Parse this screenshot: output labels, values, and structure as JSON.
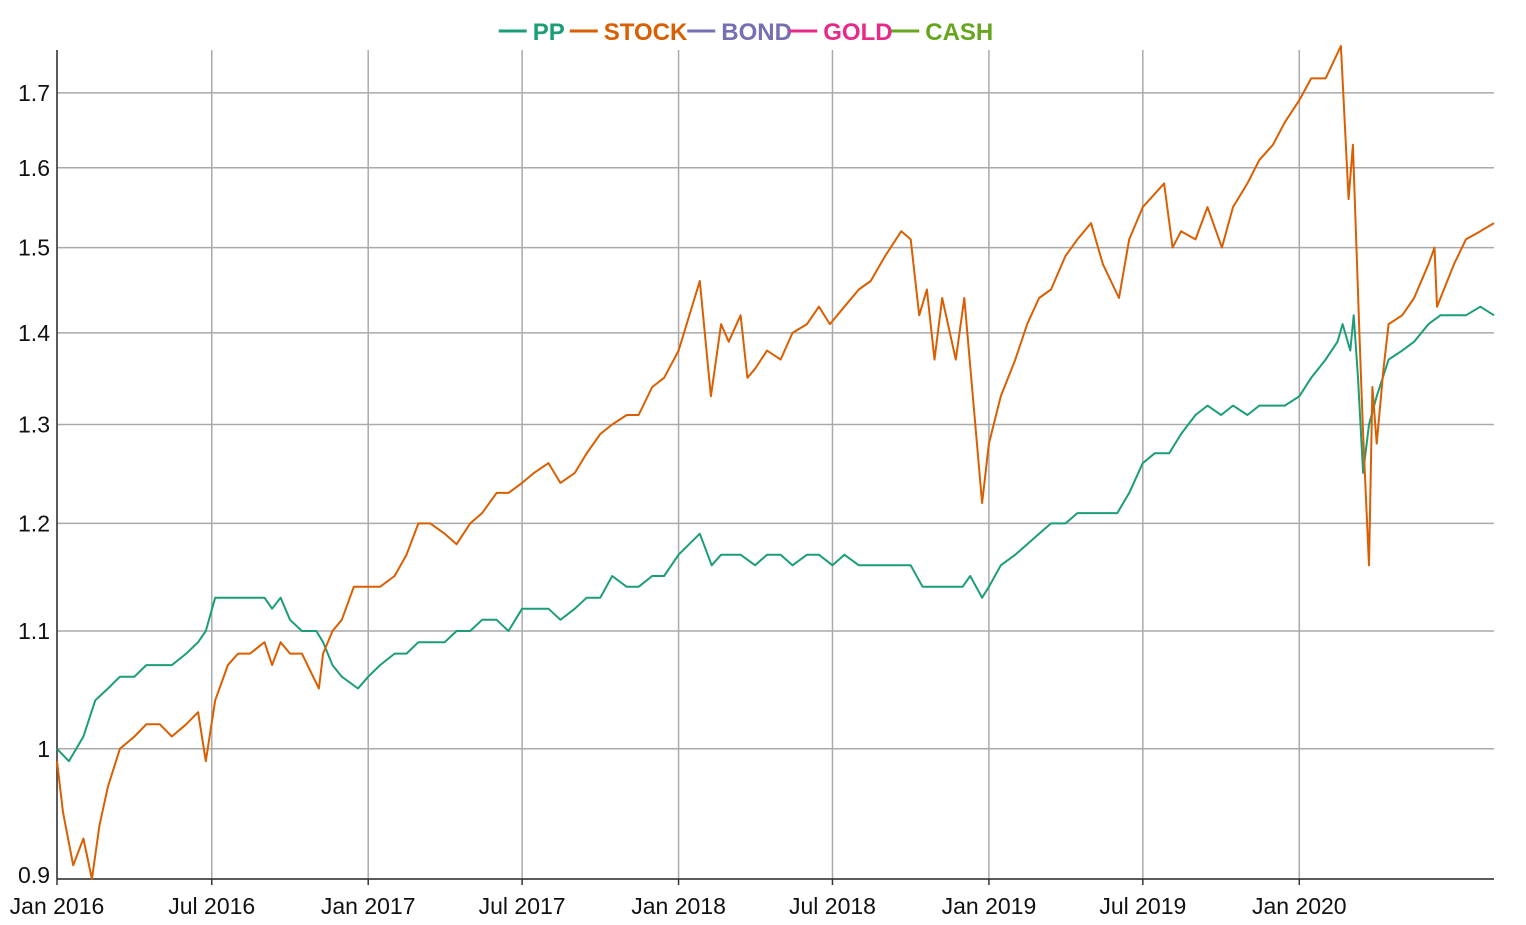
{
  "chart_data": {
    "type": "line",
    "title": "",
    "xlabel": "",
    "ylabel": "",
    "scale": {
      "y": "log"
    },
    "legend_position": "top-center",
    "grid": true,
    "x_tick_labels": [
      "Jan 2016",
      "Jul 2016",
      "Jan 2017",
      "Jul 2017",
      "Jan 2018",
      "Jul 2018",
      "Jan 2019",
      "Jul 2019",
      "Jan 2020"
    ],
    "x_ticks": [
      "2016-01-01",
      "2016-07-01",
      "2017-01-01",
      "2017-07-01",
      "2018-01-01",
      "2018-07-01",
      "2019-01-01",
      "2019-07-01",
      "2020-01-01"
    ],
    "xlim": [
      "2016-01-01",
      "2020-08-17"
    ],
    "y_ticks": [
      0.9,
      1,
      1.1,
      1.2,
      1.3,
      1.4,
      1.5,
      1.6,
      1.7
    ],
    "y_tick_labels": [
      "0.9",
      "1",
      "1.1",
      "1.2",
      "1.3",
      "1.4",
      "1.5",
      "1.6",
      "1.7"
    ],
    "ylim": [
      0.9,
      1.76
    ],
    "series": [
      {
        "name": "PP",
        "color": "#1b9e77",
        "points": [
          [
            "2016-01-01",
            1.0
          ],
          [
            "2016-01-15",
            0.99
          ],
          [
            "2016-02-01",
            1.01
          ],
          [
            "2016-02-15",
            1.04
          ],
          [
            "2016-03-01",
            1.05
          ],
          [
            "2016-03-15",
            1.06
          ],
          [
            "2016-04-01",
            1.06
          ],
          [
            "2016-04-15",
            1.07
          ],
          [
            "2016-05-01",
            1.07
          ],
          [
            "2016-05-15",
            1.07
          ],
          [
            "2016-06-01",
            1.08
          ],
          [
            "2016-06-15",
            1.09
          ],
          [
            "2016-06-24",
            1.1
          ],
          [
            "2016-07-05",
            1.13
          ],
          [
            "2016-07-15",
            1.13
          ],
          [
            "2016-08-01",
            1.13
          ],
          [
            "2016-08-15",
            1.13
          ],
          [
            "2016-09-01",
            1.13
          ],
          [
            "2016-09-10",
            1.12
          ],
          [
            "2016-09-20",
            1.13
          ],
          [
            "2016-10-01",
            1.11
          ],
          [
            "2016-10-15",
            1.1
          ],
          [
            "2016-11-01",
            1.1
          ],
          [
            "2016-11-09",
            1.09
          ],
          [
            "2016-11-20",
            1.07
          ],
          [
            "2016-12-01",
            1.06
          ],
          [
            "2016-12-20",
            1.05
          ],
          [
            "2017-01-01",
            1.06
          ],
          [
            "2017-01-15",
            1.07
          ],
          [
            "2017-02-01",
            1.08
          ],
          [
            "2017-02-15",
            1.08
          ],
          [
            "2017-03-01",
            1.09
          ],
          [
            "2017-03-15",
            1.09
          ],
          [
            "2017-04-01",
            1.09
          ],
          [
            "2017-04-15",
            1.1
          ],
          [
            "2017-05-01",
            1.1
          ],
          [
            "2017-05-15",
            1.11
          ],
          [
            "2017-06-01",
            1.11
          ],
          [
            "2017-06-15",
            1.1
          ],
          [
            "2017-07-01",
            1.12
          ],
          [
            "2017-07-15",
            1.12
          ],
          [
            "2017-08-01",
            1.12
          ],
          [
            "2017-08-15",
            1.11
          ],
          [
            "2017-09-01",
            1.12
          ],
          [
            "2017-09-15",
            1.13
          ],
          [
            "2017-10-01",
            1.13
          ],
          [
            "2017-10-15",
            1.15
          ],
          [
            "2017-11-01",
            1.14
          ],
          [
            "2017-11-15",
            1.14
          ],
          [
            "2017-12-01",
            1.15
          ],
          [
            "2017-12-15",
            1.15
          ],
          [
            "2018-01-01",
            1.17
          ],
          [
            "2018-01-26",
            1.19
          ],
          [
            "2018-02-09",
            1.16
          ],
          [
            "2018-02-20",
            1.17
          ],
          [
            "2018-03-01",
            1.17
          ],
          [
            "2018-03-15",
            1.17
          ],
          [
            "2018-04-01",
            1.16
          ],
          [
            "2018-04-15",
            1.17
          ],
          [
            "2018-05-01",
            1.17
          ],
          [
            "2018-05-15",
            1.16
          ],
          [
            "2018-06-01",
            1.17
          ],
          [
            "2018-06-15",
            1.17
          ],
          [
            "2018-07-01",
            1.16
          ],
          [
            "2018-07-15",
            1.17
          ],
          [
            "2018-08-01",
            1.16
          ],
          [
            "2018-08-15",
            1.16
          ],
          [
            "2018-09-01",
            1.16
          ],
          [
            "2018-09-15",
            1.16
          ],
          [
            "2018-10-01",
            1.16
          ],
          [
            "2018-10-15",
            1.14
          ],
          [
            "2018-11-01",
            1.14
          ],
          [
            "2018-11-15",
            1.14
          ],
          [
            "2018-12-01",
            1.14
          ],
          [
            "2018-12-10",
            1.15
          ],
          [
            "2018-12-24",
            1.13
          ],
          [
            "2019-01-01",
            1.14
          ],
          [
            "2019-01-15",
            1.16
          ],
          [
            "2019-02-01",
            1.17
          ],
          [
            "2019-02-15",
            1.18
          ],
          [
            "2019-03-01",
            1.19
          ],
          [
            "2019-03-15",
            1.2
          ],
          [
            "2019-04-01",
            1.2
          ],
          [
            "2019-04-15",
            1.21
          ],
          [
            "2019-05-01",
            1.21
          ],
          [
            "2019-05-15",
            1.21
          ],
          [
            "2019-06-01",
            1.21
          ],
          [
            "2019-06-15",
            1.23
          ],
          [
            "2019-07-01",
            1.26
          ],
          [
            "2019-07-15",
            1.27
          ],
          [
            "2019-08-01",
            1.27
          ],
          [
            "2019-08-15",
            1.29
          ],
          [
            "2019-09-01",
            1.31
          ],
          [
            "2019-09-15",
            1.32
          ],
          [
            "2019-10-01",
            1.31
          ],
          [
            "2019-10-15",
            1.32
          ],
          [
            "2019-11-01",
            1.31
          ],
          [
            "2019-11-15",
            1.32
          ],
          [
            "2019-12-01",
            1.32
          ],
          [
            "2019-12-15",
            1.32
          ],
          [
            "2020-01-01",
            1.33
          ],
          [
            "2020-01-15",
            1.35
          ],
          [
            "2020-02-01",
            1.37
          ],
          [
            "2020-02-15",
            1.39
          ],
          [
            "2020-02-21",
            1.41
          ],
          [
            "2020-03-01",
            1.38
          ],
          [
            "2020-03-05",
            1.42
          ],
          [
            "2020-03-10",
            1.35
          ],
          [
            "2020-03-16",
            1.25
          ],
          [
            "2020-03-23",
            1.3
          ],
          [
            "2020-04-01",
            1.33
          ],
          [
            "2020-04-15",
            1.37
          ],
          [
            "2020-05-01",
            1.38
          ],
          [
            "2020-05-15",
            1.39
          ],
          [
            "2020-06-01",
            1.41
          ],
          [
            "2020-06-15",
            1.42
          ],
          [
            "2020-07-01",
            1.42
          ],
          [
            "2020-07-15",
            1.42
          ],
          [
            "2020-08-01",
            1.43
          ],
          [
            "2020-08-17",
            1.42
          ]
        ]
      },
      {
        "name": "STOCK",
        "color": "#d95f02",
        "points": [
          [
            "2016-01-01",
            0.99
          ],
          [
            "2016-01-08",
            0.95
          ],
          [
            "2016-01-20",
            0.91
          ],
          [
            "2016-02-01",
            0.93
          ],
          [
            "2016-02-11",
            0.9
          ],
          [
            "2016-02-20",
            0.94
          ],
          [
            "2016-03-01",
            0.97
          ],
          [
            "2016-03-15",
            1.0
          ],
          [
            "2016-04-01",
            1.01
          ],
          [
            "2016-04-15",
            1.02
          ],
          [
            "2016-05-01",
            1.02
          ],
          [
            "2016-05-15",
            1.01
          ],
          [
            "2016-06-01",
            1.02
          ],
          [
            "2016-06-15",
            1.03
          ],
          [
            "2016-06-24",
            0.99
          ],
          [
            "2016-07-05",
            1.04
          ],
          [
            "2016-07-20",
            1.07
          ],
          [
            "2016-08-01",
            1.08
          ],
          [
            "2016-08-15",
            1.08
          ],
          [
            "2016-09-01",
            1.09
          ],
          [
            "2016-09-10",
            1.07
          ],
          [
            "2016-09-20",
            1.09
          ],
          [
            "2016-10-01",
            1.08
          ],
          [
            "2016-10-15",
            1.08
          ],
          [
            "2016-11-04",
            1.05
          ],
          [
            "2016-11-09",
            1.08
          ],
          [
            "2016-11-20",
            1.1
          ],
          [
            "2016-12-01",
            1.11
          ],
          [
            "2016-12-15",
            1.14
          ],
          [
            "2017-01-01",
            1.14
          ],
          [
            "2017-01-15",
            1.14
          ],
          [
            "2017-02-01",
            1.15
          ],
          [
            "2017-02-15",
            1.17
          ],
          [
            "2017-03-01",
            1.2
          ],
          [
            "2017-03-15",
            1.2
          ],
          [
            "2017-04-01",
            1.19
          ],
          [
            "2017-04-15",
            1.18
          ],
          [
            "2017-05-01",
            1.2
          ],
          [
            "2017-05-15",
            1.21
          ],
          [
            "2017-06-01",
            1.23
          ],
          [
            "2017-06-15",
            1.23
          ],
          [
            "2017-07-01",
            1.24
          ],
          [
            "2017-07-15",
            1.25
          ],
          [
            "2017-08-01",
            1.26
          ],
          [
            "2017-08-15",
            1.24
          ],
          [
            "2017-09-01",
            1.25
          ],
          [
            "2017-09-15",
            1.27
          ],
          [
            "2017-10-01",
            1.29
          ],
          [
            "2017-10-15",
            1.3
          ],
          [
            "2017-11-01",
            1.31
          ],
          [
            "2017-11-15",
            1.31
          ],
          [
            "2017-12-01",
            1.34
          ],
          [
            "2017-12-15",
            1.35
          ],
          [
            "2018-01-01",
            1.38
          ],
          [
            "2018-01-26",
            1.46
          ],
          [
            "2018-02-08",
            1.33
          ],
          [
            "2018-02-20",
            1.41
          ],
          [
            "2018-03-01",
            1.39
          ],
          [
            "2018-03-15",
            1.42
          ],
          [
            "2018-03-23",
            1.35
          ],
          [
            "2018-04-01",
            1.36
          ],
          [
            "2018-04-15",
            1.38
          ],
          [
            "2018-05-01",
            1.37
          ],
          [
            "2018-05-15",
            1.4
          ],
          [
            "2018-06-01",
            1.41
          ],
          [
            "2018-06-15",
            1.43
          ],
          [
            "2018-06-28",
            1.41
          ],
          [
            "2018-07-15",
            1.43
          ],
          [
            "2018-08-01",
            1.45
          ],
          [
            "2018-08-15",
            1.46
          ],
          [
            "2018-09-01",
            1.49
          ],
          [
            "2018-09-20",
            1.52
          ],
          [
            "2018-10-01",
            1.51
          ],
          [
            "2018-10-11",
            1.42
          ],
          [
            "2018-10-20",
            1.45
          ],
          [
            "2018-10-29",
            1.37
          ],
          [
            "2018-11-07",
            1.44
          ],
          [
            "2018-11-23",
            1.37
          ],
          [
            "2018-12-03",
            1.44
          ],
          [
            "2018-12-24",
            1.22
          ],
          [
            "2019-01-01",
            1.28
          ],
          [
            "2019-01-15",
            1.33
          ],
          [
            "2019-02-01",
            1.37
          ],
          [
            "2019-02-15",
            1.41
          ],
          [
            "2019-03-01",
            1.44
          ],
          [
            "2019-03-15",
            1.45
          ],
          [
            "2019-04-01",
            1.49
          ],
          [
            "2019-04-15",
            1.51
          ],
          [
            "2019-05-01",
            1.53
          ],
          [
            "2019-05-15",
            1.48
          ],
          [
            "2019-06-03",
            1.44
          ],
          [
            "2019-06-15",
            1.51
          ],
          [
            "2019-07-01",
            1.55
          ],
          [
            "2019-07-26",
            1.58
          ],
          [
            "2019-08-05",
            1.5
          ],
          [
            "2019-08-15",
            1.52
          ],
          [
            "2019-09-01",
            1.51
          ],
          [
            "2019-09-15",
            1.55
          ],
          [
            "2019-10-02",
            1.5
          ],
          [
            "2019-10-15",
            1.55
          ],
          [
            "2019-11-01",
            1.58
          ],
          [
            "2019-11-15",
            1.61
          ],
          [
            "2019-12-01",
            1.63
          ],
          [
            "2019-12-15",
            1.66
          ],
          [
            "2020-01-01",
            1.69
          ],
          [
            "2020-01-15",
            1.72
          ],
          [
            "2020-02-01",
            1.72
          ],
          [
            "2020-02-19",
            1.77
          ],
          [
            "2020-02-28",
            1.56
          ],
          [
            "2020-03-04",
            1.63
          ],
          [
            "2020-03-12",
            1.39
          ],
          [
            "2020-03-16",
            1.29
          ],
          [
            "2020-03-23",
            1.16
          ],
          [
            "2020-03-27",
            1.34
          ],
          [
            "2020-04-01",
            1.28
          ],
          [
            "2020-04-09",
            1.36
          ],
          [
            "2020-04-15",
            1.41
          ],
          [
            "2020-05-01",
            1.42
          ],
          [
            "2020-05-15",
            1.44
          ],
          [
            "2020-06-01",
            1.48
          ],
          [
            "2020-06-08",
            1.5
          ],
          [
            "2020-06-11",
            1.43
          ],
          [
            "2020-07-01",
            1.48
          ],
          [
            "2020-07-15",
            1.51
          ],
          [
            "2020-08-01",
            1.52
          ],
          [
            "2020-08-17",
            1.53
          ]
        ]
      },
      {
        "name": "BOND",
        "color": "#7570b3",
        "points": []
      },
      {
        "name": "GOLD",
        "color": "#e7298a",
        "points": []
      },
      {
        "name": "CASH",
        "color": "#66a61e",
        "points": []
      }
    ]
  }
}
